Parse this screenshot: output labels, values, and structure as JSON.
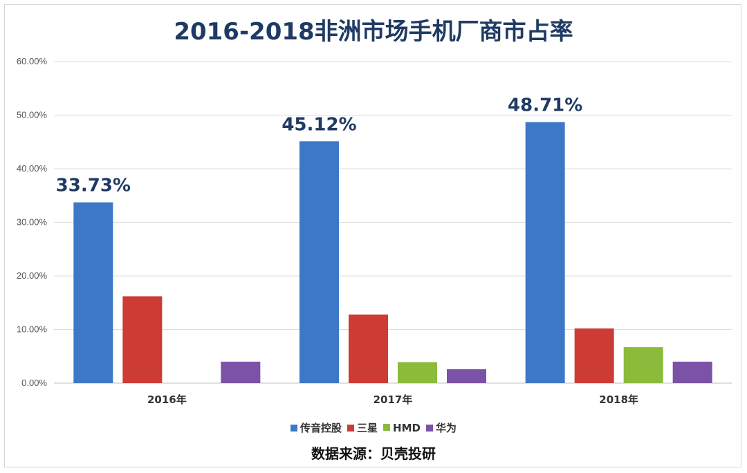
{
  "chart_data": {
    "type": "bar",
    "title": "2016-2018非洲市场手机厂商市占率",
    "categories": [
      "2016年",
      "2017年",
      "2018年"
    ],
    "series": [
      {
        "name": "传音控股",
        "color": "#3d78c6",
        "values": [
          33.73,
          45.12,
          48.71
        ]
      },
      {
        "name": "三星",
        "color": "#cc3b34",
        "values": [
          16.2,
          12.8,
          10.2
        ]
      },
      {
        "name": "HMD",
        "color": "#8bbb3a",
        "values": [
          0,
          3.9,
          6.7
        ]
      },
      {
        "name": "华为",
        "color": "#7b52a6",
        "values": [
          4.0,
          2.6,
          4.0
        ]
      }
    ],
    "data_labels": [
      "33.73%",
      "45.12%",
      "48.71%"
    ],
    "yticks": [
      "0.00%",
      "10.00%",
      "20.00%",
      "30.00%",
      "40.00%",
      "50.00%",
      "60.00%"
    ],
    "ylim": [
      0,
      60
    ],
    "xlabel": "",
    "ylabel": "",
    "grid": true,
    "legend_position": "bottom"
  },
  "source_note": "数据来源：贝壳投研"
}
